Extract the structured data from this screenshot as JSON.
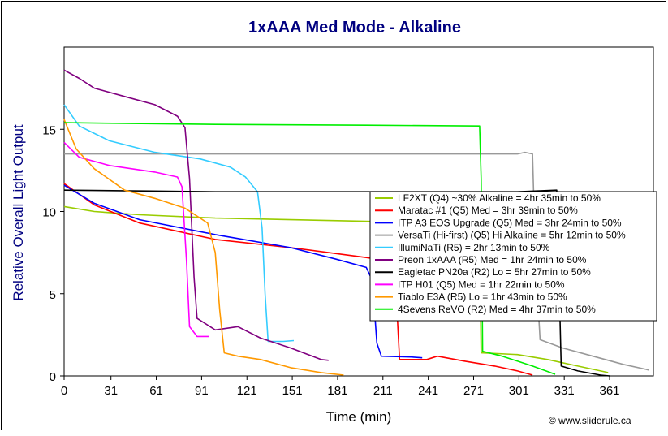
{
  "chart_data": {
    "type": "line",
    "title": "1xAAA Med Mode - Alkaline",
    "xlabel": "Time (min)",
    "ylabel": "Relative Overall Light Output",
    "xlim": [
      0,
      390
    ],
    "ylim": [
      0,
      20
    ],
    "xticks": [
      0,
      31,
      61,
      91,
      121,
      151,
      181,
      211,
      241,
      271,
      301,
      331,
      361
    ],
    "yticks": [
      0,
      5,
      10,
      15
    ],
    "grid": false,
    "legend_position": "right",
    "credit": "© www.sliderule.ca",
    "series": [
      {
        "name": "LF2XT (Q4) ~30% Alkaline = 4hr 35min to 50%",
        "color": "#99cc00",
        "points": [
          [
            0,
            10.3
          ],
          [
            20,
            10.0
          ],
          [
            50,
            9.8
          ],
          [
            100,
            9.6
          ],
          [
            150,
            9.5
          ],
          [
            200,
            9.4
          ],
          [
            250,
            9.3
          ],
          [
            270,
            9.3
          ],
          [
            275,
            7.5
          ],
          [
            276,
            1.4
          ],
          [
            300,
            1.3
          ],
          [
            320,
            1.0
          ],
          [
            340,
            0.6
          ],
          [
            360,
            0.2
          ]
        ]
      },
      {
        "name": "Maratac #1 (Q5) Med = 3hr 39min to 50%",
        "color": "#ff0000",
        "points": [
          [
            0,
            11.7
          ],
          [
            20,
            10.4
          ],
          [
            50,
            9.3
          ],
          [
            100,
            8.3
          ],
          [
            150,
            7.8
          ],
          [
            200,
            7.2
          ],
          [
            215,
            7.0
          ],
          [
            219,
            6.2
          ],
          [
            222,
            1.0
          ],
          [
            240,
            1.0
          ],
          [
            247,
            1.2
          ],
          [
            265,
            0.9
          ],
          [
            285,
            0.6
          ],
          [
            300,
            0.3
          ],
          [
            310,
            0.05
          ]
        ]
      },
      {
        "name": "ITP A3 EOS Upgrade (Q5) Med = 3hr 24min to 50%",
        "color": "#0000ff",
        "points": [
          [
            0,
            11.6
          ],
          [
            20,
            10.5
          ],
          [
            50,
            9.5
          ],
          [
            100,
            8.6
          ],
          [
            150,
            7.8
          ],
          [
            180,
            7.1
          ],
          [
            200,
            6.6
          ],
          [
            204,
            5.8
          ],
          [
            207,
            2.0
          ],
          [
            210,
            1.2
          ],
          [
            230,
            1.15
          ],
          [
            237,
            1.1
          ]
        ]
      },
      {
        "name": "VersaTi (Hi-first) (Q5) Hi Alkaline = 5hr 12min to 50%",
        "color": "#999999",
        "points": [
          [
            0,
            13.5
          ],
          [
            100,
            13.5
          ],
          [
            200,
            13.5
          ],
          [
            300,
            13.5
          ],
          [
            305,
            13.6
          ],
          [
            310,
            13.5
          ],
          [
            312,
            7.0
          ],
          [
            315,
            2.2
          ],
          [
            330,
            1.7
          ],
          [
            350,
            1.2
          ],
          [
            370,
            0.7
          ],
          [
            385,
            0.4
          ],
          [
            387,
            0.35
          ]
        ]
      },
      {
        "name": "IllumiNaTi (R5) = 2hr 13min to 50%",
        "color": "#33ccff",
        "points": [
          [
            0,
            16.5
          ],
          [
            10,
            15.2
          ],
          [
            30,
            14.3
          ],
          [
            60,
            13.6
          ],
          [
            90,
            13.2
          ],
          [
            110,
            12.7
          ],
          [
            120,
            12.1
          ],
          [
            128,
            11.2
          ],
          [
            131,
            9.0
          ],
          [
            133,
            5.0
          ],
          [
            135,
            2.1
          ],
          [
            145,
            2.1
          ],
          [
            152,
            2.15
          ]
        ]
      },
      {
        "name": "Preon 1xAAA (R5) Med = 1hr 24min to 50%",
        "color": "#800080",
        "points": [
          [
            0,
            18.6
          ],
          [
            10,
            18.1
          ],
          [
            20,
            17.5
          ],
          [
            40,
            17.0
          ],
          [
            60,
            16.5
          ],
          [
            75,
            15.8
          ],
          [
            80,
            15.1
          ],
          [
            83,
            12.0
          ],
          [
            86,
            6.0
          ],
          [
            88,
            3.5
          ],
          [
            100,
            2.8
          ],
          [
            115,
            3.0
          ],
          [
            130,
            2.3
          ],
          [
            150,
            1.7
          ],
          [
            170,
            1.0
          ],
          [
            175,
            0.95
          ]
        ]
      },
      {
        "name": "Eagletac PN20a (R2) Lo = 5hr 27min to 50%",
        "color": "#000000",
        "points": [
          [
            0,
            11.3
          ],
          [
            100,
            11.2
          ],
          [
            200,
            11.2
          ],
          [
            300,
            11.2
          ],
          [
            326,
            11.3
          ],
          [
            327,
            8.0
          ],
          [
            329,
            0.6
          ],
          [
            340,
            0.3
          ],
          [
            355,
            0.05
          ],
          [
            361,
            0.0
          ]
        ]
      },
      {
        "name": "ITP H01 (Q5) Med = 1hr 22min to 50%",
        "color": "#ff00ff",
        "points": [
          [
            0,
            14.2
          ],
          [
            10,
            13.3
          ],
          [
            30,
            12.8
          ],
          [
            60,
            12.4
          ],
          [
            75,
            12.1
          ],
          [
            78,
            11.5
          ],
          [
            81,
            7.0
          ],
          [
            83,
            3.0
          ],
          [
            88,
            2.4
          ],
          [
            96,
            2.4
          ]
        ]
      },
      {
        "name": "Tiablo E3A (R5) Lo = 1hr 43min to 50%",
        "color": "#ff9900",
        "points": [
          [
            0,
            15.6
          ],
          [
            8,
            13.8
          ],
          [
            20,
            12.6
          ],
          [
            40,
            11.3
          ],
          [
            60,
            10.8
          ],
          [
            80,
            10.2
          ],
          [
            95,
            9.3
          ],
          [
            100,
            7.5
          ],
          [
            103,
            4.0
          ],
          [
            106,
            1.4
          ],
          [
            115,
            1.2
          ],
          [
            130,
            1.0
          ],
          [
            150,
            0.5
          ],
          [
            170,
            0.2
          ],
          [
            185,
            0.05
          ]
        ]
      },
      {
        "name": "4Sevens ReVO (R2) Med = 4hr 37min to 50%",
        "color": "#00ee00",
        "points": [
          [
            0,
            15.4
          ],
          [
            100,
            15.3
          ],
          [
            200,
            15.25
          ],
          [
            275,
            15.2
          ],
          [
            276,
            12.0
          ],
          [
            277,
            1.5
          ],
          [
            290,
            1.2
          ],
          [
            300,
            0.9
          ],
          [
            310,
            0.6
          ],
          [
            325,
            0.1
          ]
        ]
      }
    ]
  }
}
